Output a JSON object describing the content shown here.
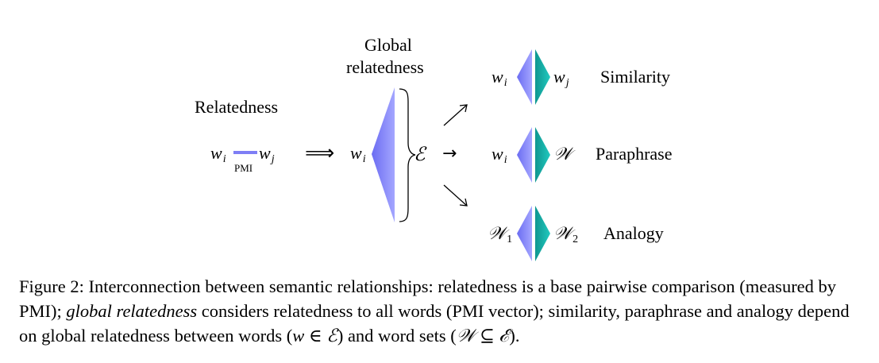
{
  "diagram": {
    "relatedness_title": "Relatedness",
    "global_title_line1": "Global",
    "global_title_line2": "relatedness",
    "pmi_label": "PMI",
    "word_base": "w",
    "sub_i": "i",
    "sub_j": "j",
    "implies_arrow": "⟹",
    "set_symbol": "ℰ",
    "word_set_symbol": "𝒲",
    "sub_1": "1",
    "sub_2": "2",
    "right_arrow": "→",
    "rows": [
      {
        "left_base": "w",
        "left_sub": "i",
        "right_base": "w",
        "right_sub": "j",
        "label": "Similarity"
      },
      {
        "left_base": "w",
        "left_sub": "i",
        "right_base": "𝒲",
        "right_sub": "",
        "label": "Paraphrase"
      },
      {
        "left_base": "𝒲",
        "left_sub": "1",
        "right_base": "𝒲",
        "right_sub": "2",
        "label": "Analogy"
      }
    ],
    "colors": {
      "blue_light": "#9a9cff",
      "blue_dark": "#6b6cf2",
      "teal_dark": "#0e9690",
      "teal_light": "#1fc7bd",
      "pmi_bar": "#7e7ef5"
    }
  },
  "caption": {
    "part1": "Figure 2: Interconnection between semantic relationships: relatedness is a base pairwise comparison (measured by PMI); ",
    "emph": "global relatedness",
    "part2": " considers relatedness to all words (PMI vector); similarity, paraphrase and analogy depend on global relatedness between words (",
    "math1": "w ∈ ℰ",
    "part3": ") and word sets (",
    "math2": "𝒲 ⊆ ℰ",
    "part4": ")."
  }
}
